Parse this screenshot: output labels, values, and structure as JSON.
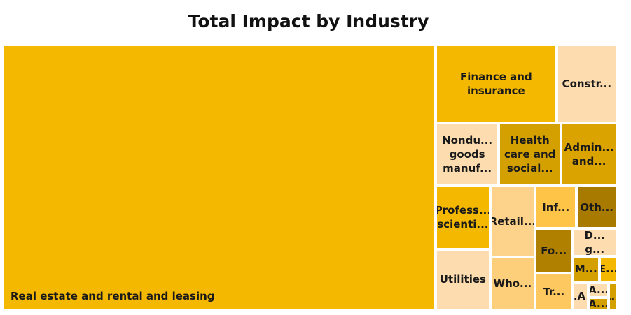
{
  "chart_data": {
    "type": "treemap",
    "title": "Total Impact by Industry",
    "categories": [
      "Real estate and rental and leasing",
      "Finance and insurance",
      "Construction",
      "Nondu... goods manuf...",
      "Health care and social...",
      "Admin... and...",
      "Profess... scienti...",
      "Utilities",
      "Retail...",
      "Who...",
      "Inf...",
      "Oth...",
      "Fo...",
      "Tr...",
      "D... g...",
      "M...",
      "E...",
      "M.A...",
      "A...",
      "A...",
      "A..."
    ],
    "categories_printed": [
      "Real estate and rental and leasing",
      "Finance and insurance",
      "Constr...",
      "Nondu... goods manuf...",
      "Health care and social...",
      "Admin... and...",
      "Profess... scienti...",
      "Utilities",
      "Retail...",
      "Who...",
      "Inf...",
      "Oth...",
      "Fo...",
      "Tr...",
      "D... g...",
      "M...",
      "E...",
      "M.A...",
      "A...",
      "A...",
      "A..."
    ],
    "values": [
      226200,
      18600,
      9300,
      7800,
      7700,
      6900,
      6800,
      6500,
      6300,
      4700,
      3500,
      3400,
      3300,
      2700,
      2400,
      1400,
      900,
      860,
      620,
      500,
      450
    ],
    "colors": [
      "#f5b800",
      "#f5b800",
      "#fddcb0",
      "#fddcb0",
      "#d4a000",
      "#daa300",
      "#f5b800",
      "#fddcb0",
      "#fdd28a",
      "#fdcf7a",
      "#fdc448",
      "#a87a00",
      "#b08000",
      "#fdc860",
      "#fddcb0",
      "#d4a000",
      "#f5b800",
      "#fddcb0",
      "#fddcb0",
      "#d4a000",
      "#d4a000"
    ]
  }
}
